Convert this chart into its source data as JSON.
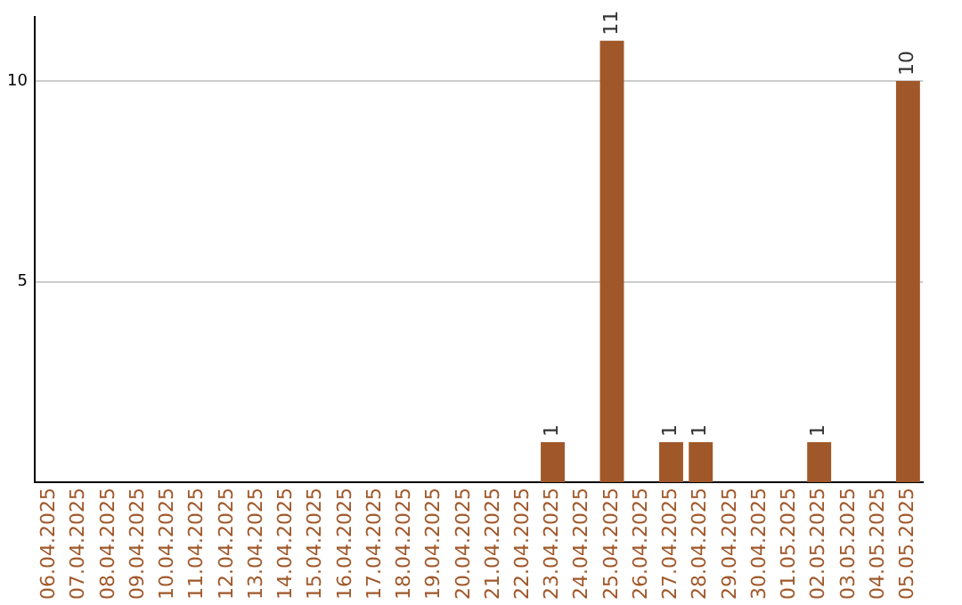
{
  "chart_data": {
    "type": "bar",
    "categories": [
      "06.04.2025",
      "07.04.2025",
      "08.04.2025",
      "09.04.2025",
      "10.04.2025",
      "11.04.2025",
      "12.04.2025",
      "13.04.2025",
      "14.04.2025",
      "15.04.2025",
      "16.04.2025",
      "17.04.2025",
      "18.04.2025",
      "19.04.2025",
      "20.04.2025",
      "21.04.2025",
      "22.04.2025",
      "23.04.2025",
      "24.04.2025",
      "25.04.2025",
      "26.04.2025",
      "27.04.2025",
      "28.04.2025",
      "29.04.2025",
      "30.04.2025",
      "01.05.2025",
      "02.05.2025",
      "03.05.2025",
      "04.05.2025",
      "05.05.2025"
    ],
    "values": [
      0,
      0,
      0,
      0,
      0,
      0,
      0,
      0,
      0,
      0,
      0,
      0,
      0,
      0,
      0,
      0,
      0,
      1,
      0,
      11,
      0,
      1,
      1,
      0,
      0,
      0,
      1,
      0,
      0,
      10
    ],
    "value_labels": [
      null,
      null,
      null,
      null,
      null,
      null,
      null,
      null,
      null,
      null,
      null,
      null,
      null,
      null,
      null,
      null,
      null,
      "1",
      null,
      "11",
      null,
      "1",
      "1",
      null,
      null,
      null,
      "1",
      null,
      null,
      "10"
    ],
    "color": "#a0582a",
    "ylim": [
      0,
      11.6
    ],
    "yticks": [
      5,
      10
    ],
    "grid": "y"
  }
}
